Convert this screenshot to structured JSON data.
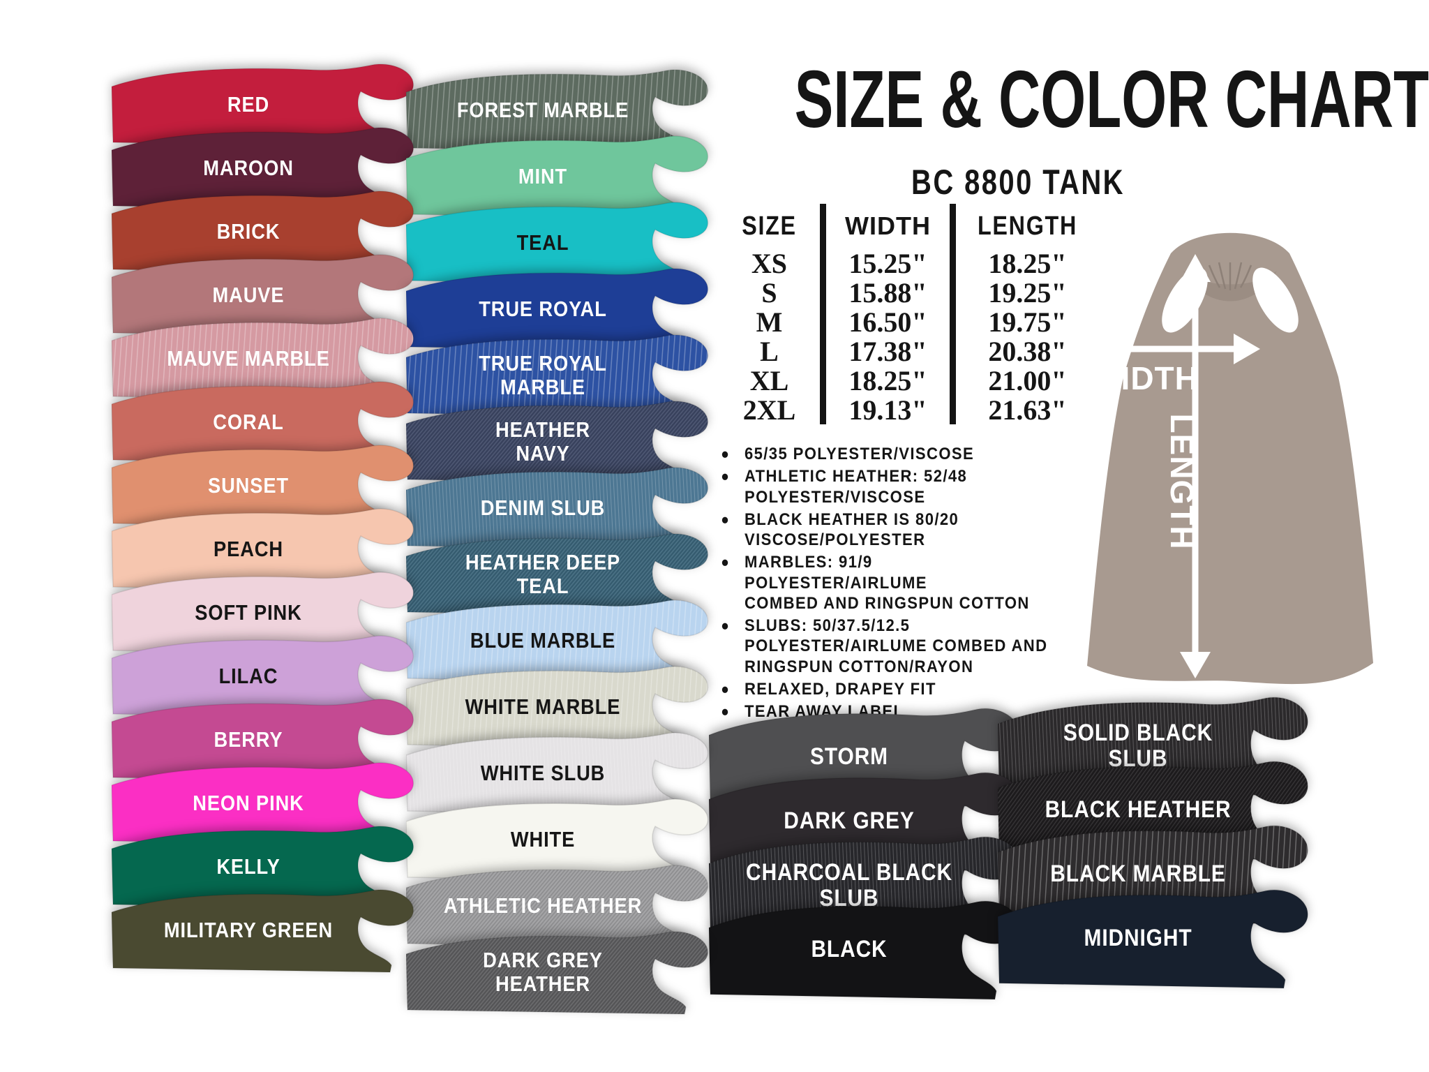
{
  "page": {
    "background": "#ffffff",
    "ink": "#151515"
  },
  "header": {
    "title": "SIZE & COLOR CHART",
    "subtitle": "BC 8800 TANK"
  },
  "size_table": {
    "columns": [
      "SIZE",
      "WIDTH",
      "LENGTH"
    ],
    "rows": [
      {
        "size": "XS",
        "width": "15.25\"",
        "length": "18.25\""
      },
      {
        "size": "S",
        "width": "15.88\"",
        "length": "19.25\""
      },
      {
        "size": "M",
        "width": "16.50\"",
        "length": "19.75\""
      },
      {
        "size": "L",
        "width": "17.38\"",
        "length": "20.38\""
      },
      {
        "size": "XL",
        "width": "18.25\"",
        "length": "21.00\""
      },
      {
        "size": "2XL",
        "width": "19.13\"",
        "length": "21.63\""
      }
    ]
  },
  "features": [
    "65/35 POLYESTER/VISCOSE",
    "ATHLETIC HEATHER: 52/48\nPOLYESTER/VISCOSE",
    "BLACK HEATHER IS 80/20\nVISCOSE/POLYESTER",
    "MARBLES: 91/9 POLYESTER/AIRLUME\nCOMBED AND RINGSPUN COTTON",
    "SLUBS: 50/37.5/12.5\nPOLYESTER/AIRLUME COMBED AND\nRINGSPUN COTTON/RAYON",
    "RELAXED, DRAPEY FIT",
    "TEAR AWAY LABEL"
  ],
  "diagram": {
    "width_label": "WIDTH",
    "length_label": "LENGTH",
    "tank_color": "#a89a90"
  },
  "color_columns": {
    "column1": [
      {
        "name": "RED",
        "color": "#c31e3d",
        "label_color": "#ffffff",
        "texture": "solid"
      },
      {
        "name": "MAROON",
        "color": "#5e2138",
        "label_color": "#ffffff",
        "texture": "solid"
      },
      {
        "name": "BRICK",
        "color": "#a8402f",
        "label_color": "#ffffff",
        "texture": "solid"
      },
      {
        "name": "MAUVE",
        "color": "#b3777a",
        "label_color": "#ffffff",
        "texture": "solid"
      },
      {
        "name": "MAUVE MARBLE",
        "color": "#d59aa2",
        "label_color": "#ffffff",
        "texture": "marble"
      },
      {
        "name": "CORAL",
        "color": "#c96a5f",
        "label_color": "#ffffff",
        "texture": "solid"
      },
      {
        "name": "SUNSET",
        "color": "#e0906f",
        "label_color": "#ffffff",
        "texture": "solid"
      },
      {
        "name": "PEACH",
        "color": "#f6c6af",
        "label_color": "#151515",
        "texture": "solid"
      },
      {
        "name": "SOFT PINK",
        "color": "#efd3dc",
        "label_color": "#151515",
        "texture": "solid"
      },
      {
        "name": "LILAC",
        "color": "#cda1d8",
        "label_color": "#151515",
        "texture": "solid"
      },
      {
        "name": "BERRY",
        "color": "#c44a92",
        "label_color": "#ffffff",
        "texture": "solid"
      },
      {
        "name": "NEON PINK",
        "color": "#fb2fc4",
        "label_color": "#ffffff",
        "texture": "solid"
      },
      {
        "name": "KELLY",
        "color": "#05684f",
        "label_color": "#ffffff",
        "texture": "solid"
      },
      {
        "name": "MILITARY GREEN",
        "color": "#4a4a31",
        "label_color": "#ffffff",
        "texture": "solid"
      }
    ],
    "column2": [
      {
        "name": "FOREST MARBLE",
        "color": "#5d6b60",
        "label_color": "#ffffff",
        "texture": "marble"
      },
      {
        "name": "MINT",
        "color": "#6fc69c",
        "label_color": "#ffffff",
        "texture": "solid"
      },
      {
        "name": "TEAL",
        "color": "#18bfc5",
        "label_color": "#151515",
        "texture": "solid"
      },
      {
        "name": "TRUE ROYAL",
        "color": "#1e3e96",
        "label_color": "#ffffff",
        "texture": "solid"
      },
      {
        "name": "TRUE ROYAL\nMARBLE",
        "color": "#2d52a3",
        "label_color": "#ffffff",
        "texture": "marble"
      },
      {
        "name": "HEATHER\nNAVY",
        "color": "#3d4764",
        "label_color": "#ffffff",
        "texture": "heather"
      },
      {
        "name": "DENIM SLUB",
        "color": "#4d7793",
        "label_color": "#ffffff",
        "texture": "slub"
      },
      {
        "name": "HEATHER DEEP\nTEAL",
        "color": "#3a6378",
        "label_color": "#ffffff",
        "texture": "heather"
      },
      {
        "name": "BLUE MARBLE",
        "color": "#b9d4ef",
        "label_color": "#151515",
        "texture": "marble"
      },
      {
        "name": "WHITE MARBLE",
        "color": "#d9d9cd",
        "label_color": "#151515",
        "texture": "marble"
      },
      {
        "name": "WHITE SLUB",
        "color": "#e5e3e5",
        "label_color": "#151515",
        "texture": "slub"
      },
      {
        "name": "WHITE",
        "color": "#f6f6f0",
        "label_color": "#151515",
        "texture": "solid"
      },
      {
        "name": "ATHLETIC HEATHER",
        "color": "#9c9c9e",
        "label_color": "#ffffff",
        "texture": "heather"
      },
      {
        "name": "DARK GREY\nHEATHER",
        "color": "#5c5c5e",
        "label_color": "#ffffff",
        "texture": "heather"
      }
    ],
    "darks_left": [
      {
        "name": "STORM",
        "color": "#4f4f51",
        "label_color": "#ffffff",
        "texture": "solid"
      },
      {
        "name": "DARK GREY",
        "color": "#2e2a2e",
        "label_color": "#ffffff",
        "texture": "solid"
      },
      {
        "name": "CHARCOAL BLACK\nSLUB",
        "color": "#27272b",
        "label_color": "#ffffff",
        "texture": "slub"
      },
      {
        "name": "BLACK",
        "color": "#131315",
        "label_color": "#ffffff",
        "texture": "solid"
      }
    ],
    "darks_right": [
      {
        "name": "SOLID BLACK\nSLUB",
        "color": "#2b292b",
        "label_color": "#ffffff",
        "texture": "slub"
      },
      {
        "name": "BLACK HEATHER",
        "color": "#1f1d1f",
        "label_color": "#ffffff",
        "texture": "heather"
      },
      {
        "name": "BLACK MARBLE",
        "color": "#2e2c2e",
        "label_color": "#ffffff",
        "texture": "marble"
      },
      {
        "name": "MIDNIGHT",
        "color": "#17202e",
        "label_color": "#ffffff",
        "texture": "solid"
      }
    ]
  }
}
